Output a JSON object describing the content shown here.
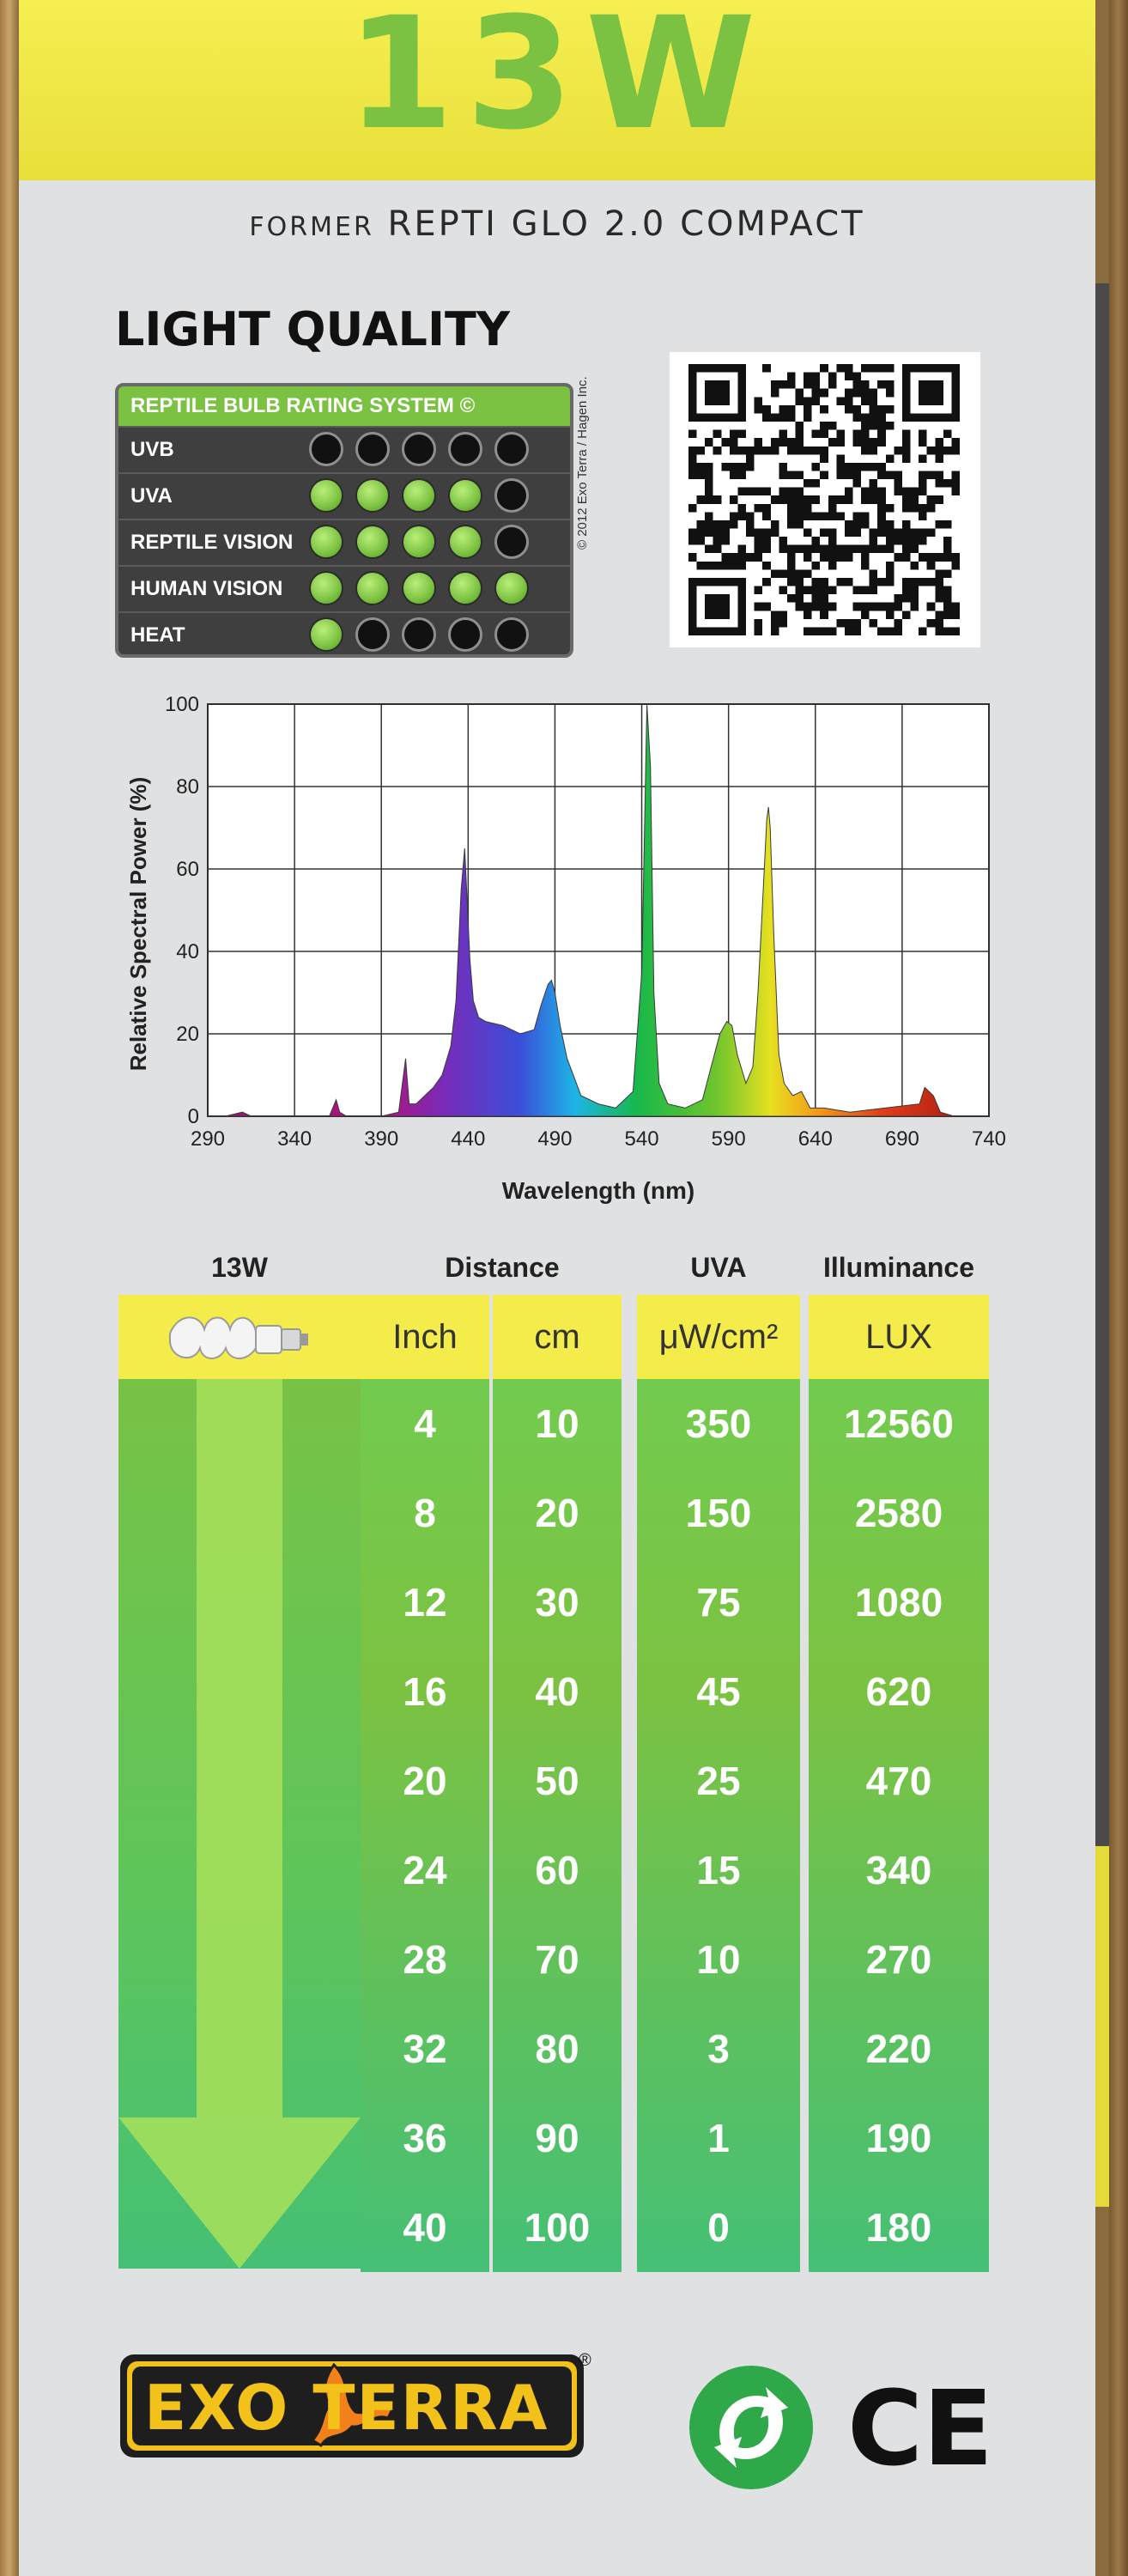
{
  "header": {
    "wattage": "13W"
  },
  "subtitle": {
    "prefix": "FORMER",
    "name": "REPTI GLO 2.0 COMPACT"
  },
  "light_quality": {
    "title": "LIGHT QUALITY",
    "system_title": "REPTILE BULB RATING SYSTEM ©",
    "rows": [
      {
        "label": "UVB",
        "rating": 0
      },
      {
        "label": "UVA",
        "rating": 4
      },
      {
        "label": "REPTILE VISION",
        "rating": 4
      },
      {
        "label": "HUMAN VISION",
        "rating": 5
      },
      {
        "label": "HEAT",
        "rating": 1
      }
    ],
    "max_rating": 5,
    "copyright": "© 2012 Exo Terra / Hagen Inc."
  },
  "chart_data": {
    "type": "line",
    "xlabel": "Wavelength (nm)",
    "ylabel": "Relative Spectral Power (%)",
    "xlim": [
      290,
      740
    ],
    "ylim": [
      0,
      100
    ],
    "xticks": [
      290,
      340,
      390,
      440,
      490,
      540,
      590,
      640,
      690,
      740
    ],
    "yticks": [
      0,
      20,
      40,
      60,
      80,
      100
    ],
    "grid": true,
    "series": [
      {
        "x": [
          290,
          300,
          310,
          315,
          320,
          330,
          340,
          350,
          360,
          364,
          366,
          370,
          380,
          390,
          400,
          404,
          406,
          410,
          420,
          425,
          430,
          433,
          436,
          438,
          441,
          443,
          446,
          450,
          460,
          470,
          478,
          482,
          486,
          488,
          490,
          493,
          497,
          505,
          515,
          525,
          535,
          540,
          543,
          545,
          547,
          550,
          555,
          565,
          575,
          580,
          585,
          589,
          592,
          595,
          600,
          604,
          607,
          610,
          612,
          613,
          614,
          616,
          619,
          622,
          627,
          632,
          637,
          645,
          660,
          680,
          700,
          703,
          708,
          712,
          720,
          740
        ],
        "y": [
          0,
          0,
          1,
          0,
          0,
          0,
          0,
          0,
          0,
          4,
          1,
          0,
          0,
          0,
          1,
          14,
          3,
          3,
          7,
          10,
          17,
          28,
          55,
          65,
          38,
          28,
          24,
          23,
          22,
          20,
          21,
          27,
          32,
          33,
          30,
          22,
          14,
          5,
          3,
          2,
          6,
          35,
          100,
          85,
          30,
          8,
          3,
          2,
          4,
          12,
          20,
          23,
          22,
          15,
          8,
          12,
          30,
          55,
          72,
          75,
          70,
          45,
          15,
          8,
          5,
          6,
          2,
          2,
          1,
          2,
          3,
          7,
          5,
          1,
          0,
          0
        ]
      }
    ]
  },
  "table": {
    "headers": {
      "bulb": "13W",
      "distance": "Distance",
      "uva": "UVA",
      "illuminance": "Illuminance"
    },
    "subheaders": {
      "inch": "Inch",
      "cm": "cm",
      "uva_unit": "μW/cm²",
      "lux": "LUX"
    },
    "rows": [
      {
        "inch": "4",
        "cm": "10",
        "uva": "350",
        "lux": "12560"
      },
      {
        "inch": "8",
        "cm": "20",
        "uva": "150",
        "lux": "2580"
      },
      {
        "inch": "12",
        "cm": "30",
        "uva": "75",
        "lux": "1080"
      },
      {
        "inch": "16",
        "cm": "40",
        "uva": "45",
        "lux": "620"
      },
      {
        "inch": "20",
        "cm": "50",
        "uva": "25",
        "lux": "470"
      },
      {
        "inch": "24",
        "cm": "60",
        "uva": "15",
        "lux": "340"
      },
      {
        "inch": "28",
        "cm": "70",
        "uva": "10",
        "lux": "270"
      },
      {
        "inch": "32",
        "cm": "80",
        "uva": "3",
        "lux": "220"
      },
      {
        "inch": "36",
        "cm": "90",
        "uva": "1",
        "lux": "190"
      },
      {
        "inch": "40",
        "cm": "100",
        "uva": "0",
        "lux": "180"
      }
    ]
  },
  "footer": {
    "brand": "EXO TERRA",
    "reg": "®",
    "ce_mark": "CE"
  },
  "colors": {
    "green": "#7cc242",
    "yellow": "#f3ec4a",
    "box": "#e0e1e3"
  }
}
